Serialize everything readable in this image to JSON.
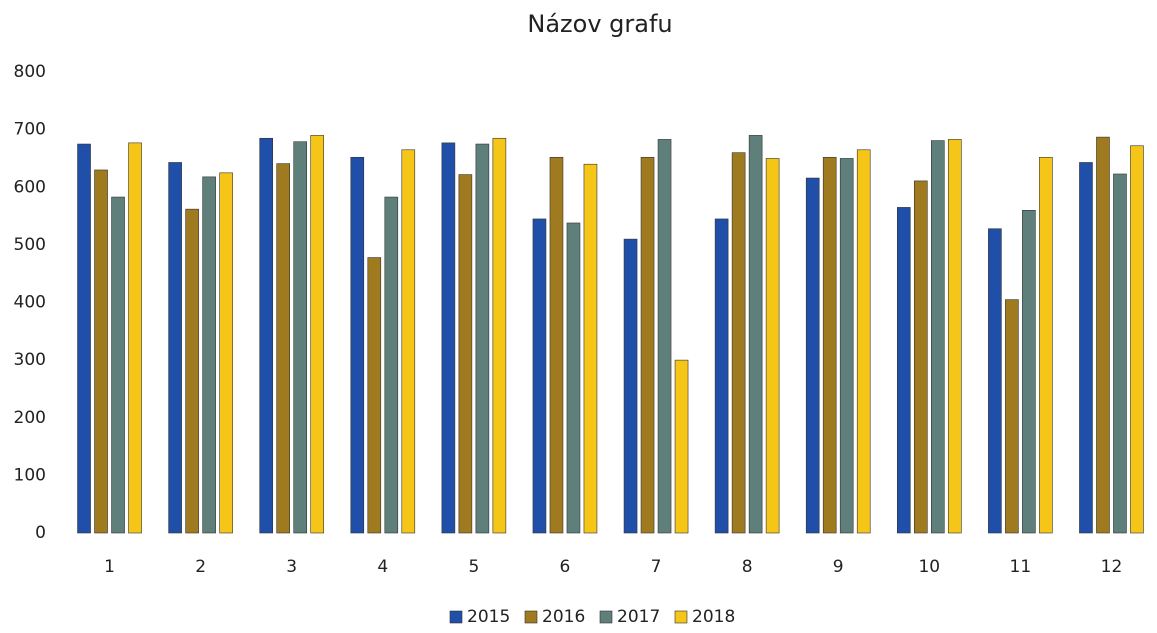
{
  "chart_data": {
    "type": "bar",
    "title": "Názov grafu",
    "categories": [
      "1",
      "2",
      "3",
      "4",
      "5",
      "6",
      "7",
      "8",
      "9",
      "10",
      "11",
      "12"
    ],
    "series": [
      {
        "name": "2015",
        "color": "#1f4fa8",
        "values": [
          675,
          643,
          685,
          652,
          677,
          545,
          510,
          545,
          616,
          565,
          528,
          643
        ]
      },
      {
        "name": "2016",
        "color": "#a07a1e",
        "values": [
          630,
          562,
          641,
          478,
          622,
          652,
          652,
          660,
          652,
          611,
          405,
          687
        ]
      },
      {
        "name": "2017",
        "color": "#5f7f7a",
        "values": [
          583,
          618,
          679,
          583,
          675,
          538,
          683,
          690,
          650,
          681,
          560,
          623
        ]
      },
      {
        "name": "2018",
        "color": "#f5c518",
        "values": [
          677,
          625,
          690,
          665,
          685,
          640,
          300,
          650,
          665,
          683,
          652,
          672
        ]
      }
    ],
    "ylim": [
      0,
      800
    ],
    "yticks": [
      0,
      100,
      200,
      300,
      400,
      500,
      600,
      700,
      800
    ],
    "grid": false,
    "legend": "bottom"
  }
}
